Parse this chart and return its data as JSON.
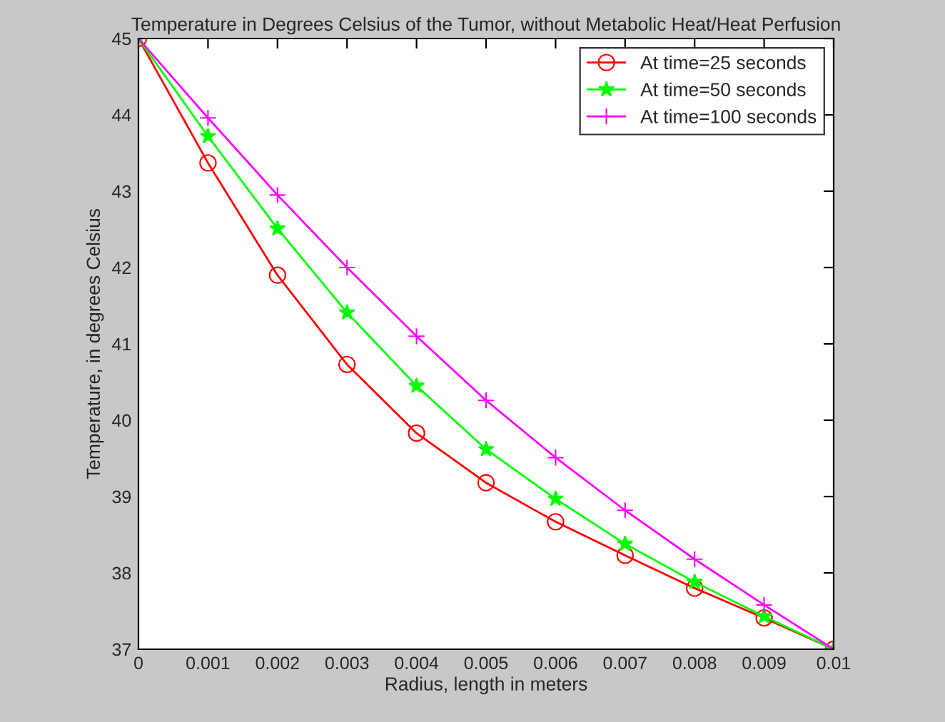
{
  "chart_data": {
    "type": "line",
    "title": "Temperature in Degrees Celsius of the Tumor, without Metabolic Heat/Heat Perfusion",
    "xlabel": "Radius, length in meters",
    "ylabel": "Temperature, in degrees Celsius",
    "x": [
      0,
      0.001,
      0.002,
      0.003,
      0.004,
      0.005,
      0.006,
      0.007,
      0.008,
      0.009,
      0.01
    ],
    "series": [
      {
        "name": "At time=25 seconds",
        "color": "#ff0000",
        "marker": "circle",
        "values": [
          45,
          43.37,
          41.9,
          40.73,
          39.83,
          39.18,
          38.67,
          38.23,
          37.8,
          37.41,
          37
        ]
      },
      {
        "name": "At time=50 seconds",
        "color": "#00ff00",
        "marker": "star",
        "values": [
          45,
          43.72,
          42.51,
          41.41,
          40.45,
          39.62,
          38.97,
          38.38,
          37.88,
          37.43,
          37
        ]
      },
      {
        "name": "At time=100 seconds",
        "color": "#ff00ff",
        "marker": "cross",
        "values": [
          45,
          43.96,
          42.95,
          42.0,
          41.1,
          40.26,
          39.51,
          38.82,
          38.18,
          37.58,
          37
        ]
      }
    ],
    "xlim": [
      0,
      0.01
    ],
    "xticks": [
      0,
      0.001,
      0.002,
      0.003,
      0.004,
      0.005,
      0.006,
      0.007,
      0.008,
      0.009,
      0.01
    ],
    "ylim": [
      37,
      45
    ],
    "yticks": [
      37,
      38,
      39,
      40,
      41,
      42,
      43,
      44,
      45
    ],
    "grid": false,
    "legend": "top right",
    "line_style": "solid"
  }
}
